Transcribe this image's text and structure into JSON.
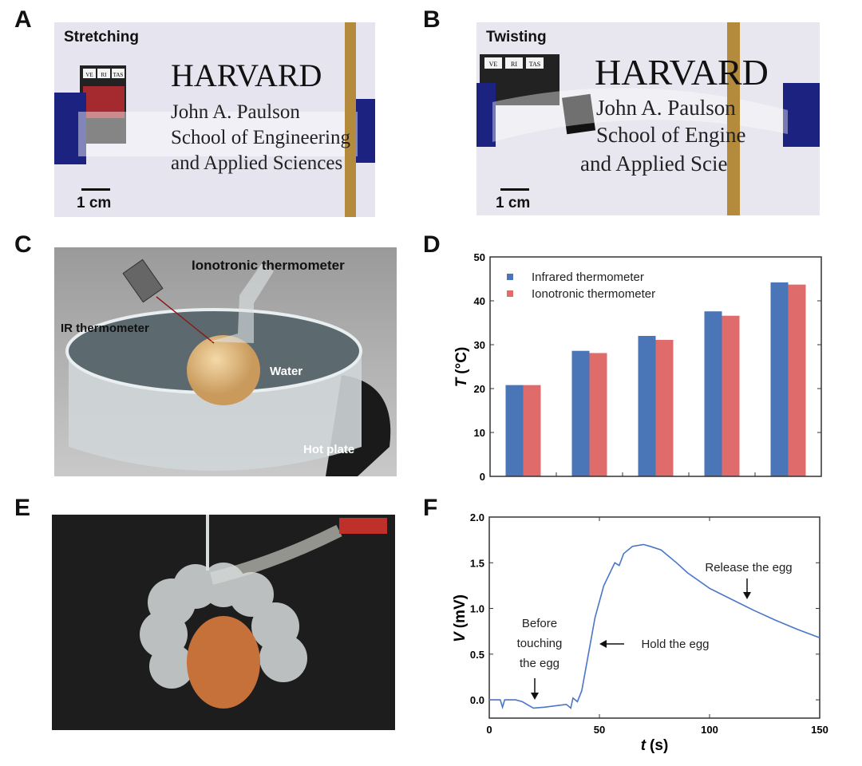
{
  "panels": {
    "A": {
      "label": "A",
      "caption": "Stretching",
      "scale_bar": "1 cm",
      "sign": {
        "title": "HARVARD",
        "line1": "John A. Paulson",
        "line2": "School of Engineering",
        "line3": "and Applied Sciences",
        "shield": [
          "VE",
          "RI",
          "TAS"
        ]
      }
    },
    "B": {
      "label": "B",
      "caption": "Twisting",
      "scale_bar": "1 cm",
      "sign": {
        "title": "HARVARD",
        "line1": "John A. Paulson",
        "line2": "School of Engine",
        "line3": "and Applied Scie",
        "shield": [
          "VE",
          "RI",
          "TAS"
        ]
      }
    },
    "C": {
      "label": "C",
      "title": "Ionotronic thermometer",
      "ir": "IR thermometer",
      "water": "Water",
      "plate": "Hot plate"
    },
    "D": {
      "label": "D"
    },
    "E": {
      "label": "E"
    },
    "F": {
      "label": "F"
    }
  },
  "chart_data": [
    {
      "panel": "D",
      "type": "bar",
      "categories": [
        "",
        "",
        "",
        "",
        ""
      ],
      "series": [
        {
          "name": "Infrared thermometer",
          "values": [
            20.8,
            28.6,
            32.0,
            37.6,
            44.2
          ],
          "color": "#4a76b8"
        },
        {
          "name": "Ionotronic thermometer",
          "values": [
            20.8,
            28.1,
            31.1,
            36.6,
            43.7
          ],
          "color": "#e06b6b"
        }
      ],
      "ylabel": "T (°C)",
      "ylabel_italic": "T",
      "ylabel_unit": "(°C)",
      "ylim": [
        0,
        50
      ],
      "yticks": [
        "0",
        "10",
        "20",
        "30",
        "40",
        "50"
      ],
      "legend": "top-left",
      "grid": false
    },
    {
      "panel": "F",
      "type": "line",
      "x": [
        0,
        5,
        6,
        7,
        12,
        15,
        20,
        25,
        35,
        37,
        38,
        40,
        42,
        45,
        48,
        52,
        57,
        59,
        61,
        65,
        70,
        73,
        78,
        85,
        90,
        100,
        110,
        120,
        130,
        140,
        150
      ],
      "y": [
        0,
        0,
        -0.08,
        0,
        0,
        -0.02,
        -0.09,
        -0.08,
        -0.05,
        -0.09,
        0.02,
        -0.02,
        0.1,
        0.5,
        0.9,
        1.25,
        1.5,
        1.47,
        1.6,
        1.68,
        1.7,
        1.68,
        1.64,
        1.5,
        1.39,
        1.22,
        1.1,
        0.98,
        0.87,
        0.77,
        0.68
      ],
      "color": "#4a76c8",
      "xlabel_italic": "t",
      "xlabel_unit": "(s)",
      "ylabel_italic": "V",
      "ylabel_unit": "(mV)",
      "xlim": [
        0,
        150
      ],
      "ylim": [
        -0.2,
        2.0
      ],
      "xticks": [
        "0",
        "50",
        "100",
        "150"
      ],
      "yticks": [
        "0.0",
        "0.5",
        "1.0",
        "1.5",
        "2.0"
      ],
      "annotations": {
        "before": [
          "Before",
          "touching",
          "the egg"
        ],
        "hold": "Hold the egg",
        "release": "Release the egg"
      },
      "grid": false
    }
  ]
}
